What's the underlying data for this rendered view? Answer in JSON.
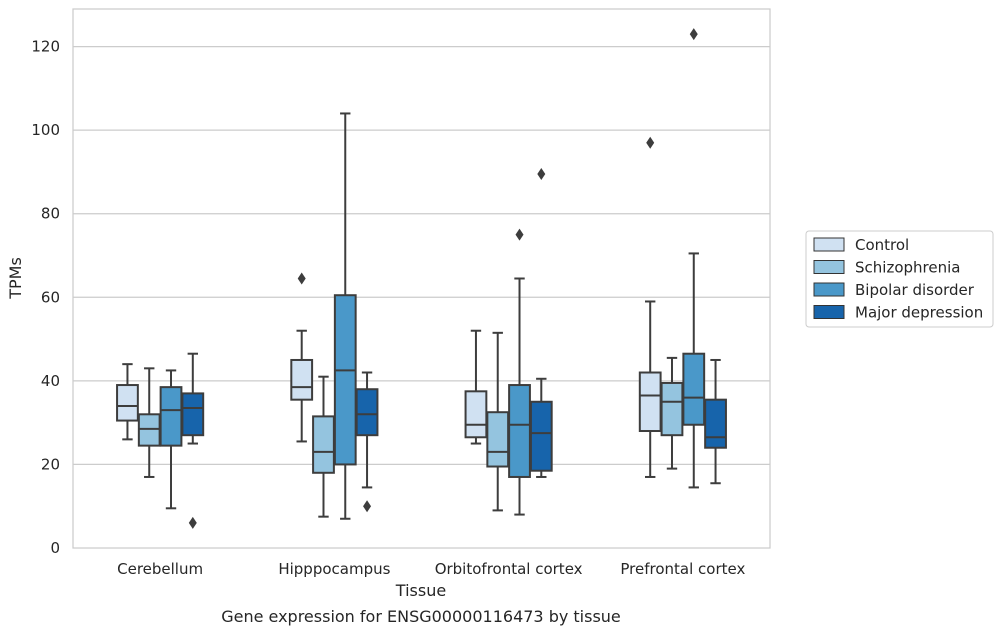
{
  "chart_data": {
    "type": "box",
    "title": "",
    "caption": "Gene expression for ENSG00000116473 by tissue",
    "xlabel": "Tissue",
    "ylabel": "TPMs",
    "ylim": [
      0,
      129
    ],
    "yticks": [
      0,
      20,
      40,
      60,
      80,
      100,
      120
    ],
    "grid": "horizontal",
    "legend_placement": "right",
    "categories": [
      "Cerebellum",
      "Hipppocampus",
      "Orbitofrontal cortex",
      "Prefrontal cortex"
    ],
    "series": [
      {
        "name": "Control",
        "color": "#d0e1f2",
        "boxes": [
          {
            "whislo": 26,
            "q1": 30.5,
            "med": 34,
            "q3": 39,
            "whishi": 44,
            "fliers": []
          },
          {
            "whislo": 25.5,
            "q1": 35.5,
            "med": 38.5,
            "q3": 45,
            "whishi": 52,
            "fliers": [
              64.5
            ]
          },
          {
            "whislo": 25,
            "q1": 26.5,
            "med": 29.5,
            "q3": 37.5,
            "whishi": 52,
            "fliers": []
          },
          {
            "whislo": 17,
            "q1": 28,
            "med": 36.5,
            "q3": 42,
            "whishi": 59,
            "fliers": [
              97
            ]
          }
        ]
      },
      {
        "name": "Schizophrenia",
        "color": "#94c4df",
        "boxes": [
          {
            "whislo": 17,
            "q1": 24.5,
            "med": 28.5,
            "q3": 32,
            "whishi": 43,
            "fliers": []
          },
          {
            "whislo": 7.5,
            "q1": 18,
            "med": 23,
            "q3": 31.5,
            "whishi": 41,
            "fliers": []
          },
          {
            "whislo": 9,
            "q1": 19.5,
            "med": 23,
            "q3": 32.5,
            "whishi": 51.5,
            "fliers": []
          },
          {
            "whislo": 19,
            "q1": 27,
            "med": 35,
            "q3": 39.5,
            "whishi": 45.5,
            "fliers": []
          }
        ]
      },
      {
        "name": "Bipolar disorder",
        "color": "#4a98c9",
        "boxes": [
          {
            "whislo": 9.5,
            "q1": 24.5,
            "med": 33,
            "q3": 38.5,
            "whishi": 42.5,
            "fliers": []
          },
          {
            "whislo": 7,
            "q1": 20,
            "med": 42.5,
            "q3": 60.5,
            "whishi": 104,
            "fliers": []
          },
          {
            "whislo": 8,
            "q1": 17,
            "med": 29.5,
            "q3": 39,
            "whishi": 64.5,
            "fliers": [
              75
            ]
          },
          {
            "whislo": 14.5,
            "q1": 29.5,
            "med": 36,
            "q3": 46.5,
            "whishi": 70.5,
            "fliers": [
              123
            ]
          }
        ]
      },
      {
        "name": "Major depression",
        "color": "#1764ab",
        "boxes": [
          {
            "whislo": 25,
            "q1": 27,
            "med": 33.5,
            "q3": 37,
            "whishi": 46.5,
            "fliers": [
              6
            ]
          },
          {
            "whislo": 14.5,
            "q1": 27,
            "med": 32,
            "q3": 38,
            "whishi": 42,
            "fliers": [
              10
            ]
          },
          {
            "whislo": 17,
            "q1": 18.5,
            "med": 27.5,
            "q3": 35,
            "whishi": 40.5,
            "fliers": [
              89.5
            ]
          },
          {
            "whislo": 15.5,
            "q1": 24,
            "med": 26.5,
            "q3": 35.5,
            "whishi": 45,
            "fliers": []
          }
        ]
      }
    ]
  }
}
